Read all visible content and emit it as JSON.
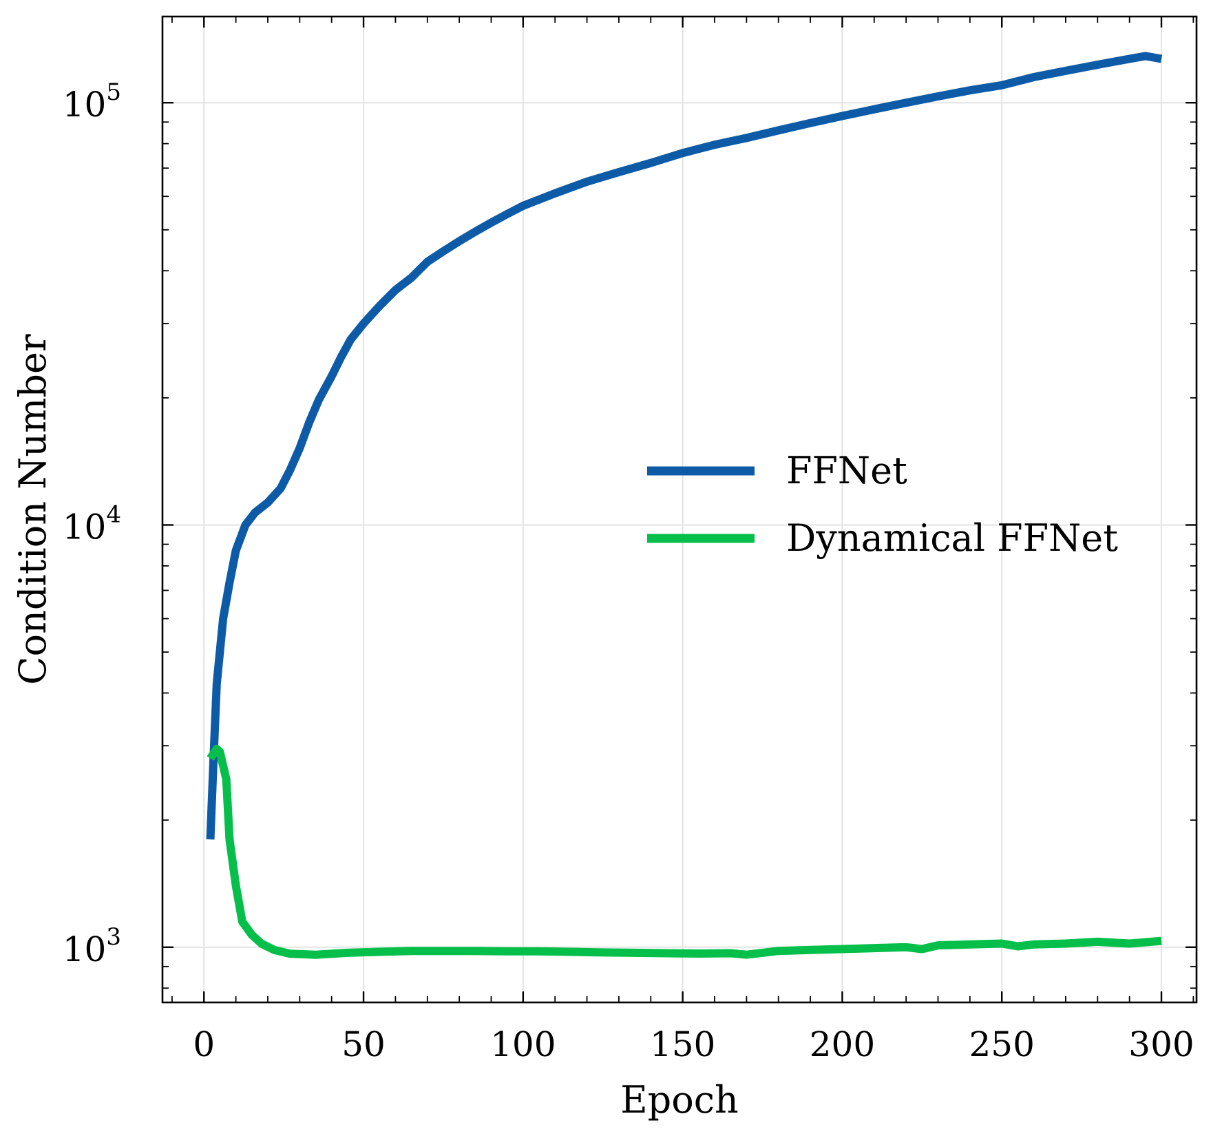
{
  "chart_data": {
    "type": "line",
    "xlabel": "Epoch",
    "ylabel": "Condition Number",
    "xlim": [
      -13,
      311
    ],
    "ylim": [
      740,
      160000
    ],
    "yscale": "log",
    "grid": true,
    "legend_position": "center-right",
    "x_ticks": [
      0,
      50,
      100,
      150,
      200,
      250,
      300
    ],
    "y_ticks": [
      {
        "value": 1000,
        "base": "10",
        "exp": "3"
      },
      {
        "value": 10000,
        "base": "10",
        "exp": "4"
      },
      {
        "value": 100000,
        "base": "10",
        "exp": "5"
      }
    ],
    "series": [
      {
        "name": "FFNet",
        "color": "#0d5ba7",
        "points": [
          [
            2,
            1800
          ],
          [
            3,
            2800
          ],
          [
            4,
            4200
          ],
          [
            6,
            6000
          ],
          [
            8,
            7300
          ],
          [
            10,
            8700
          ],
          [
            13,
            10000
          ],
          [
            16,
            10700
          ],
          [
            20,
            11300
          ],
          [
            24,
            12200
          ],
          [
            27,
            13500
          ],
          [
            30,
            15200
          ],
          [
            33,
            17500
          ],
          [
            36,
            19800
          ],
          [
            40,
            22500
          ],
          [
            43,
            25000
          ],
          [
            46,
            27500
          ],
          [
            50,
            30000
          ],
          [
            55,
            33000
          ],
          [
            60,
            36000
          ],
          [
            65,
            38500
          ],
          [
            70,
            42000
          ],
          [
            75,
            44500
          ],
          [
            80,
            47000
          ],
          [
            85,
            49500
          ],
          [
            90,
            52000
          ],
          [
            95,
            54500
          ],
          [
            100,
            57000
          ],
          [
            110,
            61000
          ],
          [
            120,
            65000
          ],
          [
            130,
            68500
          ],
          [
            140,
            72000
          ],
          [
            150,
            76000
          ],
          [
            160,
            79500
          ],
          [
            170,
            82500
          ],
          [
            180,
            86000
          ],
          [
            190,
            89500
          ],
          [
            200,
            93000
          ],
          [
            210,
            96500
          ],
          [
            220,
            100000
          ],
          [
            230,
            103500
          ],
          [
            240,
            107000
          ],
          [
            250,
            110000
          ],
          [
            260,
            115000
          ],
          [
            270,
            119000
          ],
          [
            280,
            123000
          ],
          [
            290,
            127000
          ],
          [
            295,
            129000
          ],
          [
            300,
            127000
          ]
        ]
      },
      {
        "name": "Dynamical FFNet",
        "color": "#06bf4a",
        "points": [
          [
            2,
            2800
          ],
          [
            4,
            2950
          ],
          [
            5,
            2900
          ],
          [
            7,
            2500
          ],
          [
            8,
            1800
          ],
          [
            10,
            1400
          ],
          [
            12,
            1150
          ],
          [
            15,
            1070
          ],
          [
            18,
            1020
          ],
          [
            22,
            985
          ],
          [
            27,
            965
          ],
          [
            35,
            960
          ],
          [
            45,
            970
          ],
          [
            55,
            975
          ],
          [
            65,
            980
          ],
          [
            75,
            980
          ],
          [
            85,
            980
          ],
          [
            95,
            978
          ],
          [
            105,
            978
          ],
          [
            115,
            975
          ],
          [
            125,
            972
          ],
          [
            135,
            970
          ],
          [
            145,
            968
          ],
          [
            155,
            966
          ],
          [
            165,
            968
          ],
          [
            170,
            960
          ],
          [
            180,
            980
          ],
          [
            190,
            985
          ],
          [
            200,
            990
          ],
          [
            210,
            995
          ],
          [
            220,
            1000
          ],
          [
            225,
            990
          ],
          [
            230,
            1010
          ],
          [
            240,
            1015
          ],
          [
            250,
            1020
          ],
          [
            255,
            1005
          ],
          [
            260,
            1015
          ],
          [
            270,
            1020
          ],
          [
            280,
            1030
          ],
          [
            290,
            1020
          ],
          [
            300,
            1035
          ]
        ]
      }
    ]
  }
}
